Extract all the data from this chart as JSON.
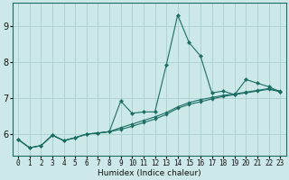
{
  "xlabel": "Humidex (Indice chaleur)",
  "bg_color": "#cce8e8",
  "line_color": "#1a6e64",
  "grid_color": "#aacfcf",
  "spine_color": "#1a6e64",
  "xlim": [
    -0.5,
    23.5
  ],
  "ylim": [
    5.4,
    9.65
  ],
  "yticks": [
    6,
    7,
    8,
    9
  ],
  "xticks": [
    0,
    1,
    2,
    3,
    4,
    5,
    6,
    7,
    8,
    9,
    10,
    11,
    12,
    13,
    14,
    15,
    16,
    17,
    18,
    19,
    20,
    21,
    22,
    23
  ],
  "xtick_labels": [
    "0",
    "1",
    "2",
    "3",
    "4",
    "5",
    "6",
    "7",
    "8",
    "9",
    "10",
    "11",
    "12",
    "13",
    "14",
    "15",
    "16",
    "17",
    "18",
    "19",
    "20",
    "21",
    "22",
    "23"
  ],
  "line1_y": [
    5.85,
    5.62,
    5.68,
    5.97,
    5.82,
    5.9,
    6.0,
    6.03,
    6.07,
    6.92,
    6.58,
    6.62,
    6.62,
    7.92,
    9.32,
    8.55,
    8.18,
    7.15,
    7.2,
    7.1,
    7.52,
    7.42,
    7.32,
    7.18
  ],
  "line2_y": [
    5.85,
    5.62,
    5.68,
    5.97,
    5.82,
    5.9,
    6.0,
    6.03,
    6.07,
    6.13,
    6.22,
    6.32,
    6.42,
    6.55,
    6.72,
    6.83,
    6.9,
    6.98,
    7.05,
    7.1,
    7.15,
    7.2,
    7.25,
    7.18
  ],
  "line3_y": [
    5.85,
    5.62,
    5.68,
    5.97,
    5.82,
    5.9,
    6.0,
    6.03,
    6.07,
    6.18,
    6.28,
    6.38,
    6.48,
    6.6,
    6.76,
    6.88,
    6.96,
    7.02,
    7.08,
    7.12,
    7.17,
    7.22,
    7.27,
    7.2
  ],
  "xlabel_fontsize": 6.5,
  "tick_fontsize": 5.5,
  "ytick_fontsize": 7
}
